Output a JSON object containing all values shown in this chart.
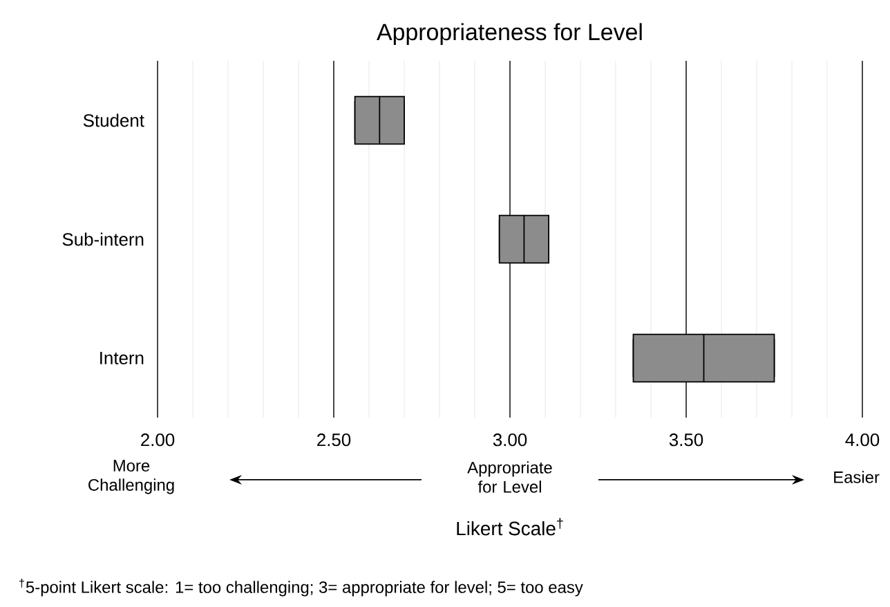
{
  "chart_data": {
    "type": "box",
    "orientation": "horizontal",
    "title": "Appropriateness for Level",
    "xlabel": "Likert Scale$^{†}$",
    "categories": [
      "Student",
      "Sub-intern",
      "Intern"
    ],
    "boxes": [
      {
        "low": 2.56,
        "q1": 2.56,
        "median": 2.63,
        "q3": 2.7,
        "high": 2.7
      },
      {
        "low": 2.97,
        "q1": 2.97,
        "median": 3.04,
        "q3": 3.11,
        "high": 3.11
      },
      {
        "low": 3.35,
        "q1": 3.35,
        "median": 3.55,
        "q3": 3.75,
        "high": 3.75
      }
    ],
    "color": "#8c8c8c",
    "xlim": [
      2.0,
      4.0
    ],
    "xticks": [
      {
        "value": 2.0,
        "label": "2.00"
      },
      {
        "value": 2.5,
        "label": "2.50"
      },
      {
        "value": 3.0,
        "label": "3.00"
      },
      {
        "value": 3.5,
        "label": "3.50"
      },
      {
        "value": 4.0,
        "label": "4.00"
      }
    ],
    "grid": "x",
    "annotations": [
      "More Challenging",
      "Appropriate for Level",
      "Easier",
      "$^{†}$5-point Likert scale: 1= too challenging; 3= appropriate for level; 5= too easy"
    ]
  }
}
